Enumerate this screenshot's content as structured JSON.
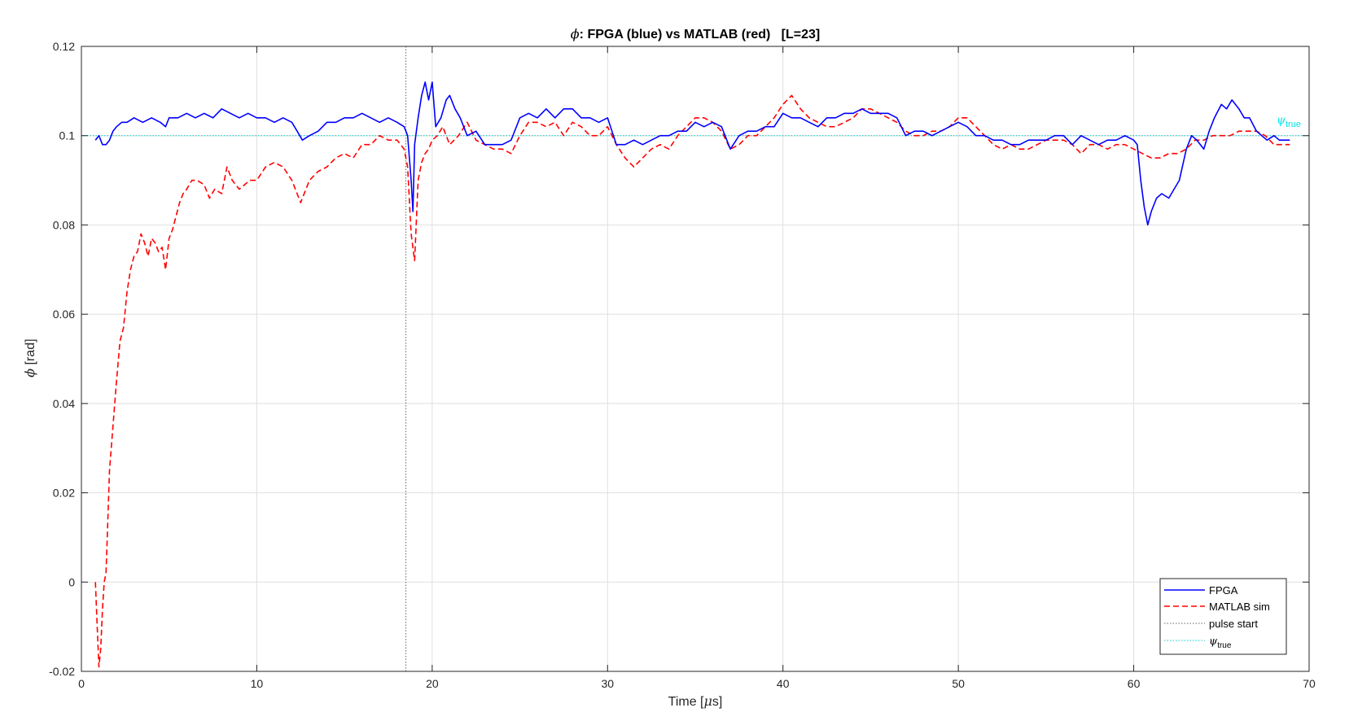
{
  "chart_data": {
    "type": "line",
    "title_symbol": "ϕ",
    "title_text": ": FPGA (blue) vs MATLAB (red)   [L=23]",
    "xlabel_prefix": "Time [",
    "xlabel_symbol": "μ",
    "xlabel_suffix": "s]",
    "ylabel_symbol": "ϕ",
    "ylabel_suffix": " [rad]",
    "xlim": [
      0,
      70
    ],
    "ylim": [
      -0.02,
      0.12
    ],
    "xticks": [
      0,
      10,
      20,
      30,
      40,
      50,
      60,
      70
    ],
    "xtick_labels": [
      "0",
      "10",
      "20",
      "30",
      "40",
      "50",
      "60",
      "70"
    ],
    "yticks": [
      -0.02,
      0,
      0.02,
      0.04,
      0.06,
      0.08,
      0.1,
      0.12
    ],
    "ytick_labels": [
      "-0.02",
      "0",
      "0.02",
      "0.04",
      "0.06",
      "0.08",
      "0.1",
      "0.12"
    ],
    "grid": true,
    "legend_position": "bottom-right",
    "pulse_start_x": 18.5,
    "psi_true": 0.1,
    "psi_label_symbol": "ψ",
    "psi_label_sub": "true",
    "series": [
      {
        "name": "FPGA",
        "color": "#0000ff",
        "style": "solid",
        "x": [
          0.8,
          1.0,
          1.2,
          1.4,
          1.6,
          1.8,
          2.0,
          2.3,
          2.6,
          3.0,
          3.5,
          4.0,
          4.5,
          4.8,
          5.0,
          5.5,
          6.0,
          6.5,
          7.0,
          7.5,
          8.0,
          8.5,
          9.0,
          9.5,
          10.0,
          10.5,
          11.0,
          11.5,
          12.0,
          12.3,
          12.6,
          13.0,
          13.5,
          14.0,
          14.5,
          15.0,
          15.5,
          16.0,
          16.5,
          17.0,
          17.5,
          18.0,
          18.4,
          18.6,
          18.8,
          18.9,
          19.0,
          19.2,
          19.4,
          19.6,
          19.8,
          20.0,
          20.2,
          20.5,
          20.8,
          21.0,
          21.3,
          21.6,
          22.0,
          22.5,
          23.0,
          23.5,
          24.0,
          24.5,
          25.0,
          25.5,
          26.0,
          26.5,
          27.0,
          27.5,
          28.0,
          28.5,
          29.0,
          29.5,
          30.0,
          30.5,
          31.0,
          31.5,
          32.0,
          32.5,
          33.0,
          33.5,
          34.0,
          34.5,
          35.0,
          35.5,
          36.0,
          36.5,
          37.0,
          37.5,
          38.0,
          38.5,
          39.0,
          39.5,
          40.0,
          40.5,
          41.0,
          41.5,
          42.0,
          42.5,
          43.0,
          43.5,
          44.0,
          44.5,
          45.0,
          45.5,
          46.0,
          46.5,
          47.0,
          47.5,
          48.0,
          48.5,
          49.0,
          49.5,
          50.0,
          50.5,
          51.0,
          51.5,
          52.0,
          52.5,
          53.0,
          53.5,
          54.0,
          54.5,
          55.0,
          55.5,
          56.0,
          56.5,
          57.0,
          57.5,
          58.0,
          58.5,
          59.0,
          59.5,
          60.0,
          60.2,
          60.4,
          60.6,
          60.8,
          61.0,
          61.3,
          61.6,
          62.0,
          62.3,
          62.6,
          63.0,
          63.3,
          63.6,
          64.0,
          64.3,
          64.6,
          65.0,
          65.3,
          65.6,
          66.0,
          66.3,
          66.6,
          67.0,
          67.3,
          67.6,
          68.0,
          68.3,
          68.6,
          68.9
        ],
        "values": [
          0.099,
          0.1,
          0.098,
          0.098,
          0.099,
          0.101,
          0.102,
          0.103,
          0.103,
          0.104,
          0.103,
          0.104,
          0.103,
          0.102,
          0.104,
          0.104,
          0.105,
          0.104,
          0.105,
          0.104,
          0.106,
          0.105,
          0.104,
          0.105,
          0.104,
          0.104,
          0.103,
          0.104,
          0.103,
          0.101,
          0.099,
          0.1,
          0.101,
          0.103,
          0.103,
          0.104,
          0.104,
          0.105,
          0.104,
          0.103,
          0.104,
          0.103,
          0.102,
          0.1,
          0.09,
          0.083,
          0.098,
          0.104,
          0.109,
          0.112,
          0.108,
          0.112,
          0.102,
          0.104,
          0.108,
          0.109,
          0.106,
          0.104,
          0.1,
          0.101,
          0.098,
          0.098,
          0.098,
          0.099,
          0.104,
          0.105,
          0.104,
          0.106,
          0.104,
          0.106,
          0.106,
          0.104,
          0.104,
          0.103,
          0.104,
          0.098,
          0.098,
          0.099,
          0.098,
          0.099,
          0.1,
          0.1,
          0.101,
          0.101,
          0.103,
          0.102,
          0.103,
          0.102,
          0.097,
          0.1,
          0.101,
          0.101,
          0.102,
          0.102,
          0.105,
          0.104,
          0.104,
          0.103,
          0.102,
          0.104,
          0.104,
          0.105,
          0.105,
          0.106,
          0.105,
          0.105,
          0.105,
          0.104,
          0.1,
          0.101,
          0.101,
          0.1,
          0.101,
          0.102,
          0.103,
          0.102,
          0.1,
          0.1,
          0.099,
          0.099,
          0.098,
          0.098,
          0.099,
          0.099,
          0.099,
          0.1,
          0.1,
          0.098,
          0.1,
          0.099,
          0.098,
          0.099,
          0.099,
          0.1,
          0.099,
          0.098,
          0.09,
          0.084,
          0.08,
          0.083,
          0.086,
          0.087,
          0.086,
          0.088,
          0.09,
          0.097,
          0.1,
          0.099,
          0.097,
          0.101,
          0.104,
          0.107,
          0.106,
          0.108,
          0.106,
          0.104,
          0.104,
          0.101,
          0.1,
          0.099,
          0.1,
          0.099,
          0.099,
          0.099
        ],
        "lw": 1.6
      },
      {
        "name": "MATLAB sim",
        "color": "#ff0000",
        "style": "dashed",
        "x": [
          0.8,
          0.9,
          1.0,
          1.1,
          1.2,
          1.3,
          1.4,
          1.5,
          1.6,
          1.8,
          2.0,
          2.2,
          2.4,
          2.6,
          2.8,
          3.0,
          3.2,
          3.4,
          3.6,
          3.8,
          4.0,
          4.2,
          4.4,
          4.6,
          4.8,
          5.0,
          5.2,
          5.4,
          5.6,
          5.8,
          6.0,
          6.3,
          6.6,
          7.0,
          7.3,
          7.6,
          8.0,
          8.3,
          8.6,
          9.0,
          9.3,
          9.6,
          10.0,
          10.5,
          11.0,
          11.5,
          12.0,
          12.5,
          13.0,
          13.5,
          14.0,
          14.5,
          15.0,
          15.5,
          16.0,
          16.5,
          17.0,
          17.5,
          18.0,
          18.4,
          18.6,
          18.8,
          19.0,
          19.2,
          19.4,
          19.6,
          19.8,
          20.0,
          20.3,
          20.6,
          21.0,
          21.5,
          22.0,
          22.5,
          23.0,
          23.5,
          24.0,
          24.5,
          25.0,
          25.5,
          26.0,
          26.5,
          27.0,
          27.5,
          28.0,
          28.5,
          29.0,
          29.5,
          30.0,
          30.5,
          31.0,
          31.5,
          32.0,
          32.5,
          33.0,
          33.5,
          34.0,
          34.5,
          35.0,
          35.5,
          36.0,
          36.5,
          37.0,
          37.5,
          38.0,
          38.5,
          39.0,
          39.5,
          40.0,
          40.5,
          41.0,
          41.5,
          42.0,
          42.5,
          43.0,
          43.5,
          44.0,
          44.5,
          45.0,
          45.5,
          46.0,
          46.5,
          47.0,
          47.5,
          48.0,
          48.5,
          49.0,
          49.5,
          50.0,
          50.5,
          51.0,
          51.5,
          52.0,
          52.5,
          53.0,
          53.5,
          54.0,
          54.5,
          55.0,
          55.5,
          56.0,
          56.5,
          57.0,
          57.5,
          58.0,
          58.5,
          59.0,
          59.5,
          60.0,
          60.5,
          61.0,
          61.5,
          62.0,
          62.5,
          63.0,
          63.5,
          64.0,
          64.5,
          65.0,
          65.5,
          66.0,
          66.5,
          67.0,
          67.5,
          68.0,
          68.5,
          68.9
        ],
        "values": [
          0.0,
          -0.01,
          -0.019,
          -0.015,
          -0.006,
          0.0,
          0.002,
          0.013,
          0.025,
          0.035,
          0.045,
          0.054,
          0.057,
          0.065,
          0.07,
          0.073,
          0.074,
          0.078,
          0.076,
          0.073,
          0.077,
          0.076,
          0.074,
          0.075,
          0.07,
          0.077,
          0.079,
          0.082,
          0.085,
          0.087,
          0.088,
          0.09,
          0.09,
          0.089,
          0.086,
          0.088,
          0.087,
          0.093,
          0.09,
          0.088,
          0.089,
          0.09,
          0.09,
          0.093,
          0.094,
          0.093,
          0.09,
          0.085,
          0.09,
          0.092,
          0.093,
          0.095,
          0.096,
          0.095,
          0.098,
          0.098,
          0.1,
          0.099,
          0.099,
          0.097,
          0.093,
          0.078,
          0.072,
          0.09,
          0.094,
          0.096,
          0.097,
          0.099,
          0.1,
          0.102,
          0.098,
          0.1,
          0.103,
          0.099,
          0.098,
          0.097,
          0.097,
          0.096,
          0.1,
          0.103,
          0.103,
          0.102,
          0.103,
          0.1,
          0.103,
          0.102,
          0.1,
          0.1,
          0.102,
          0.098,
          0.095,
          0.093,
          0.095,
          0.097,
          0.098,
          0.097,
          0.1,
          0.102,
          0.104,
          0.104,
          0.103,
          0.101,
          0.097,
          0.098,
          0.1,
          0.1,
          0.102,
          0.104,
          0.107,
          0.109,
          0.106,
          0.104,
          0.103,
          0.102,
          0.102,
          0.103,
          0.104,
          0.106,
          0.106,
          0.105,
          0.104,
          0.103,
          0.101,
          0.1,
          0.1,
          0.101,
          0.101,
          0.102,
          0.104,
          0.104,
          0.102,
          0.1,
          0.098,
          0.097,
          0.098,
          0.097,
          0.097,
          0.098,
          0.099,
          0.099,
          0.099,
          0.098,
          0.096,
          0.098,
          0.098,
          0.097,
          0.098,
          0.098,
          0.097,
          0.096,
          0.095,
          0.095,
          0.096,
          0.096,
          0.097,
          0.099,
          0.099,
          0.1,
          0.1,
          0.1,
          0.101,
          0.101,
          0.101,
          0.1,
          0.098,
          0.098,
          0.098
        ],
        "lw": 1.6
      },
      {
        "name": "pulse start",
        "color": "#666666",
        "style": "dotted"
      },
      {
        "name_symbol": "ψ",
        "name_sub": "true",
        "color": "#00cccc",
        "style": "dotted"
      }
    ]
  }
}
